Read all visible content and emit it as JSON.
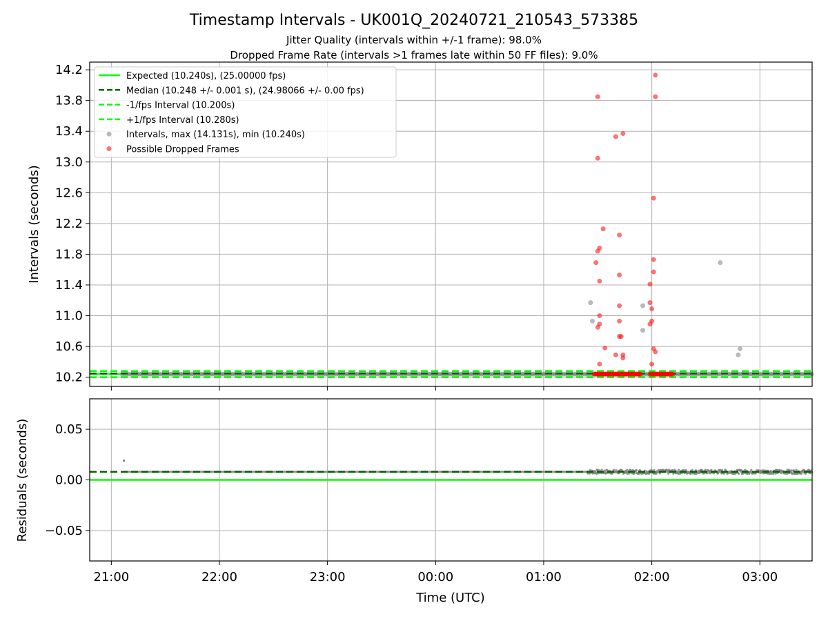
{
  "title": "Timestamp Intervals - UK001Q_20240721_210543_573385",
  "subtitle_lines": [
    "Jitter Quality (intervals within +/-1 frame): 98.0%",
    "Dropped Frame Rate (intervals >1 frames late within 50 FF files): 9.0%"
  ],
  "colors": {
    "expected": "#00ff00",
    "median": "#006400",
    "bounds": "#00ff00",
    "intervals": "#808080",
    "dropped": "#ff0000",
    "grid": "#b0b0b0"
  },
  "chart_data": [
    {
      "type": "scatter",
      "ylabel": "Intervals (seconds)",
      "ylim": [
        10.08,
        14.3
      ],
      "yticks": [
        10.2,
        10.6,
        11.0,
        11.4,
        11.8,
        12.2,
        12.6,
        13.0,
        13.4,
        13.8,
        14.2
      ],
      "ytick_labels": [
        "10.2",
        "10.6",
        "11.0",
        "11.4",
        "11.8",
        "12.2",
        "12.6",
        "13.0",
        "13.4",
        "13.8",
        "14.2"
      ],
      "xlim": [
        "20:48",
        "03:29"
      ],
      "grid": true,
      "legend_position": "upper-left",
      "legend": [
        {
          "label": "Expected (10.240s), (25.00000 fps)",
          "style": "solid-line",
          "color": "#00ff00"
        },
        {
          "label": "Median (10.248 +/- 0.001 s), (24.98066 +/- 0.00 fps)",
          "style": "dashed-line",
          "color": "#006400"
        },
        {
          "label": "-1/fps Interval (10.200s)",
          "style": "dashed-line",
          "color": "#00ff00"
        },
        {
          "label": "+1/fps Interval (10.280s)",
          "style": "dashed-line",
          "color": "#00ff00"
        },
        {
          "label": "Intervals, max (14.131s), min (10.240s)",
          "style": "marker",
          "color": "#808080"
        },
        {
          "label": "Possible Dropped Frames",
          "style": "marker",
          "color": "#ff0000"
        }
      ],
      "reference_lines": {
        "expected": 10.24,
        "median": 10.248,
        "lower": 10.2,
        "upper": 10.28
      },
      "regular_intervals": {
        "start": "21:06",
        "end": "03:29",
        "value": 10.24,
        "series": "Intervals, max (14.131s), min (10.240s)"
      },
      "dropped_cluster_ranges": [
        {
          "start": "01:28",
          "end": "01:54",
          "value": 10.24
        },
        {
          "start": "01:59",
          "end": "02:12",
          "value": 10.24
        }
      ],
      "outliers_gray": [
        {
          "x": "01:26",
          "y": 11.17
        },
        {
          "x": "01:27",
          "y": 10.93
        },
        {
          "x": "01:55",
          "y": 11.13
        },
        {
          "x": "01:55",
          "y": 10.81
        },
        {
          "x": "02:38",
          "y": 11.69
        },
        {
          "x": "02:48",
          "y": 10.49
        },
        {
          "x": "02:49",
          "y": 10.57
        }
      ],
      "dropped_frames": [
        {
          "x": "01:30",
          "y": 13.85
        },
        {
          "x": "01:30",
          "y": 13.05
        },
        {
          "x": "01:30",
          "y": 11.84
        },
        {
          "x": "01:31",
          "y": 11.88
        },
        {
          "x": "01:29",
          "y": 11.69
        },
        {
          "x": "01:31",
          "y": 11.45
        },
        {
          "x": "01:33",
          "y": 12.13
        },
        {
          "x": "01:31",
          "y": 11.0
        },
        {
          "x": "01:31",
          "y": 10.89
        },
        {
          "x": "01:30",
          "y": 10.85
        },
        {
          "x": "01:34",
          "y": 10.58
        },
        {
          "x": "01:31",
          "y": 10.37
        },
        {
          "x": "01:40",
          "y": 13.33
        },
        {
          "x": "01:44",
          "y": 13.37
        },
        {
          "x": "01:42",
          "y": 12.05
        },
        {
          "x": "01:42",
          "y": 11.53
        },
        {
          "x": "01:42",
          "y": 11.13
        },
        {
          "x": "01:42",
          "y": 10.93
        },
        {
          "x": "01:43",
          "y": 10.73
        },
        {
          "x": "01:42",
          "y": 10.73
        },
        {
          "x": "01:40",
          "y": 10.49
        },
        {
          "x": "01:44",
          "y": 10.49
        },
        {
          "x": "01:44",
          "y": 10.45
        },
        {
          "x": "02:02",
          "y": 14.13
        },
        {
          "x": "02:02",
          "y": 13.85
        },
        {
          "x": "02:01",
          "y": 12.53
        },
        {
          "x": "02:01",
          "y": 11.73
        },
        {
          "x": "02:01",
          "y": 11.57
        },
        {
          "x": "01:59",
          "y": 11.41
        },
        {
          "x": "01:59",
          "y": 11.17
        },
        {
          "x": "02:00",
          "y": 11.09
        },
        {
          "x": "02:00",
          "y": 10.93
        },
        {
          "x": "01:59",
          "y": 10.89
        },
        {
          "x": "02:01",
          "y": 10.57
        },
        {
          "x": "02:02",
          "y": 10.53
        },
        {
          "x": "02:00",
          "y": 10.37
        }
      ]
    },
    {
      "type": "scatter",
      "ylabel": "Residuals (seconds)",
      "xlabel": "Time (UTC)",
      "ylim": [
        -0.08,
        0.08
      ],
      "yticks": [
        0.05,
        0.0,
        -0.05
      ],
      "ytick_labels": [
        "0.05",
        "0.00",
        "−0.05"
      ],
      "xticks": [
        "21:00",
        "22:00",
        "23:00",
        "00:00",
        "01:00",
        "02:00",
        "03:00"
      ],
      "xlim": [
        "20:48",
        "03:29"
      ],
      "grid": true,
      "reference_lines": {
        "zero": 0.0,
        "median_offset": 0.008
      },
      "residual_points": [
        {
          "x": "21:07",
          "y": 0.019
        },
        {
          "range_start": "21:08",
          "range_end": "01:24",
          "y": 0.008
        },
        {
          "range_start": "01:24",
          "range_end": "03:29",
          "y": 0.008,
          "spread": 0.002
        }
      ]
    }
  ]
}
